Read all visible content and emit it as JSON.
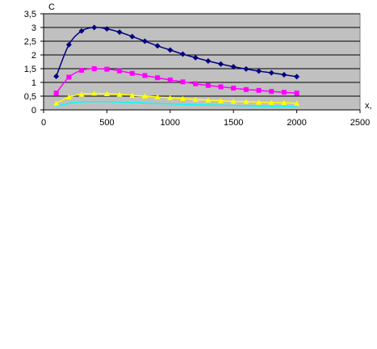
{
  "chart_data": {
    "type": "line",
    "ylabel": "C",
    "xlabel": "x,",
    "xlim": [
      0,
      2500
    ],
    "ylim": [
      0,
      3.5
    ],
    "x_ticks": [
      "0",
      "500",
      "1000",
      "1500",
      "2000",
      "2500"
    ],
    "y_ticks": [
      "0",
      "0,5",
      "1",
      "1,5",
      "2",
      "2,5",
      "3",
      "3,5"
    ],
    "grid": "horizontal",
    "legend": "none",
    "plot_background": "#c0c0c0",
    "x": [
      100,
      200,
      300,
      400,
      500,
      600,
      700,
      800,
      900,
      1000,
      1100,
      1200,
      1300,
      1400,
      1500,
      1600,
      1700,
      1800,
      1900,
      2000
    ],
    "series": [
      {
        "color": "#000080",
        "marker": "diamond",
        "values": [
          1.22,
          2.37,
          2.87,
          3.0,
          2.95,
          2.83,
          2.67,
          2.5,
          2.33,
          2.18,
          2.03,
          1.9,
          1.78,
          1.67,
          1.57,
          1.49,
          1.41,
          1.35,
          1.28,
          1.21
        ]
      },
      {
        "color": "#ff00ff",
        "marker": "square",
        "values": [
          0.61,
          1.19,
          1.44,
          1.5,
          1.48,
          1.42,
          1.33,
          1.25,
          1.17,
          1.09,
          1.02,
          0.95,
          0.89,
          0.84,
          0.79,
          0.74,
          0.71,
          0.67,
          0.64,
          0.61
        ]
      },
      {
        "color": "#ffff00",
        "marker": "triangle",
        "values": [
          0.24,
          0.47,
          0.57,
          0.6,
          0.59,
          0.57,
          0.53,
          0.5,
          0.47,
          0.44,
          0.41,
          0.38,
          0.36,
          0.33,
          0.31,
          0.3,
          0.28,
          0.27,
          0.26,
          0.24
        ]
      },
      {
        "color": "#00ffff",
        "marker": "none",
        "values": [
          0.12,
          0.24,
          0.29,
          0.3,
          0.3,
          0.28,
          0.27,
          0.25,
          0.23,
          0.22,
          0.2,
          0.19,
          0.18,
          0.17,
          0.16,
          0.15,
          0.14,
          0.13,
          0.13,
          0.12
        ]
      }
    ]
  }
}
